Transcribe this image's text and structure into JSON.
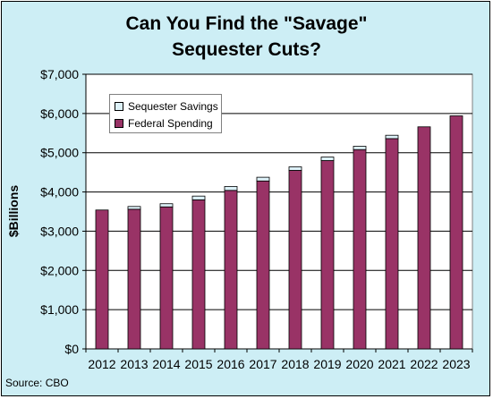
{
  "title_lines": [
    "Can You Find the \"Savage\"",
    "Sequester Cuts?"
  ],
  "source": "Source: CBO",
  "colors": {
    "background": "#cdeef5",
    "plot_area": "#ffffff",
    "federal_spending": "#993366",
    "sequester_savings": "#ddf1f8"
  },
  "chart_data": {
    "type": "bar",
    "stacked": true,
    "title": "Can You Find the \"Savage\" Sequester Cuts?",
    "xlabel": "",
    "ylabel": "$Billions",
    "ylim": [
      0,
      7000
    ],
    "ytick_step": 1000,
    "ytick_labels": [
      "$0",
      "$1,000",
      "$2,000",
      "$3,000",
      "$4,000",
      "$5,000",
      "$6,000",
      "$7,000"
    ],
    "grid": "horizontal",
    "legend_position": "top-left",
    "categories": [
      "2012",
      "2013",
      "2014",
      "2015",
      "2016",
      "2017",
      "2018",
      "2019",
      "2020",
      "2021",
      "2022",
      "2023"
    ],
    "series": [
      {
        "name": "Federal Spending",
        "values": [
          3540,
          3560,
          3620,
          3800,
          4040,
          4280,
          4550,
          4800,
          5080,
          5360,
          5660,
          5940
        ]
      },
      {
        "name": "Sequester Savings",
        "values": [
          0,
          70,
          80,
          95,
          100,
          95,
          90,
          90,
          85,
          85,
          0,
          0
        ]
      }
    ],
    "legend": [
      "Sequester Savings",
      "Federal Spending"
    ]
  }
}
